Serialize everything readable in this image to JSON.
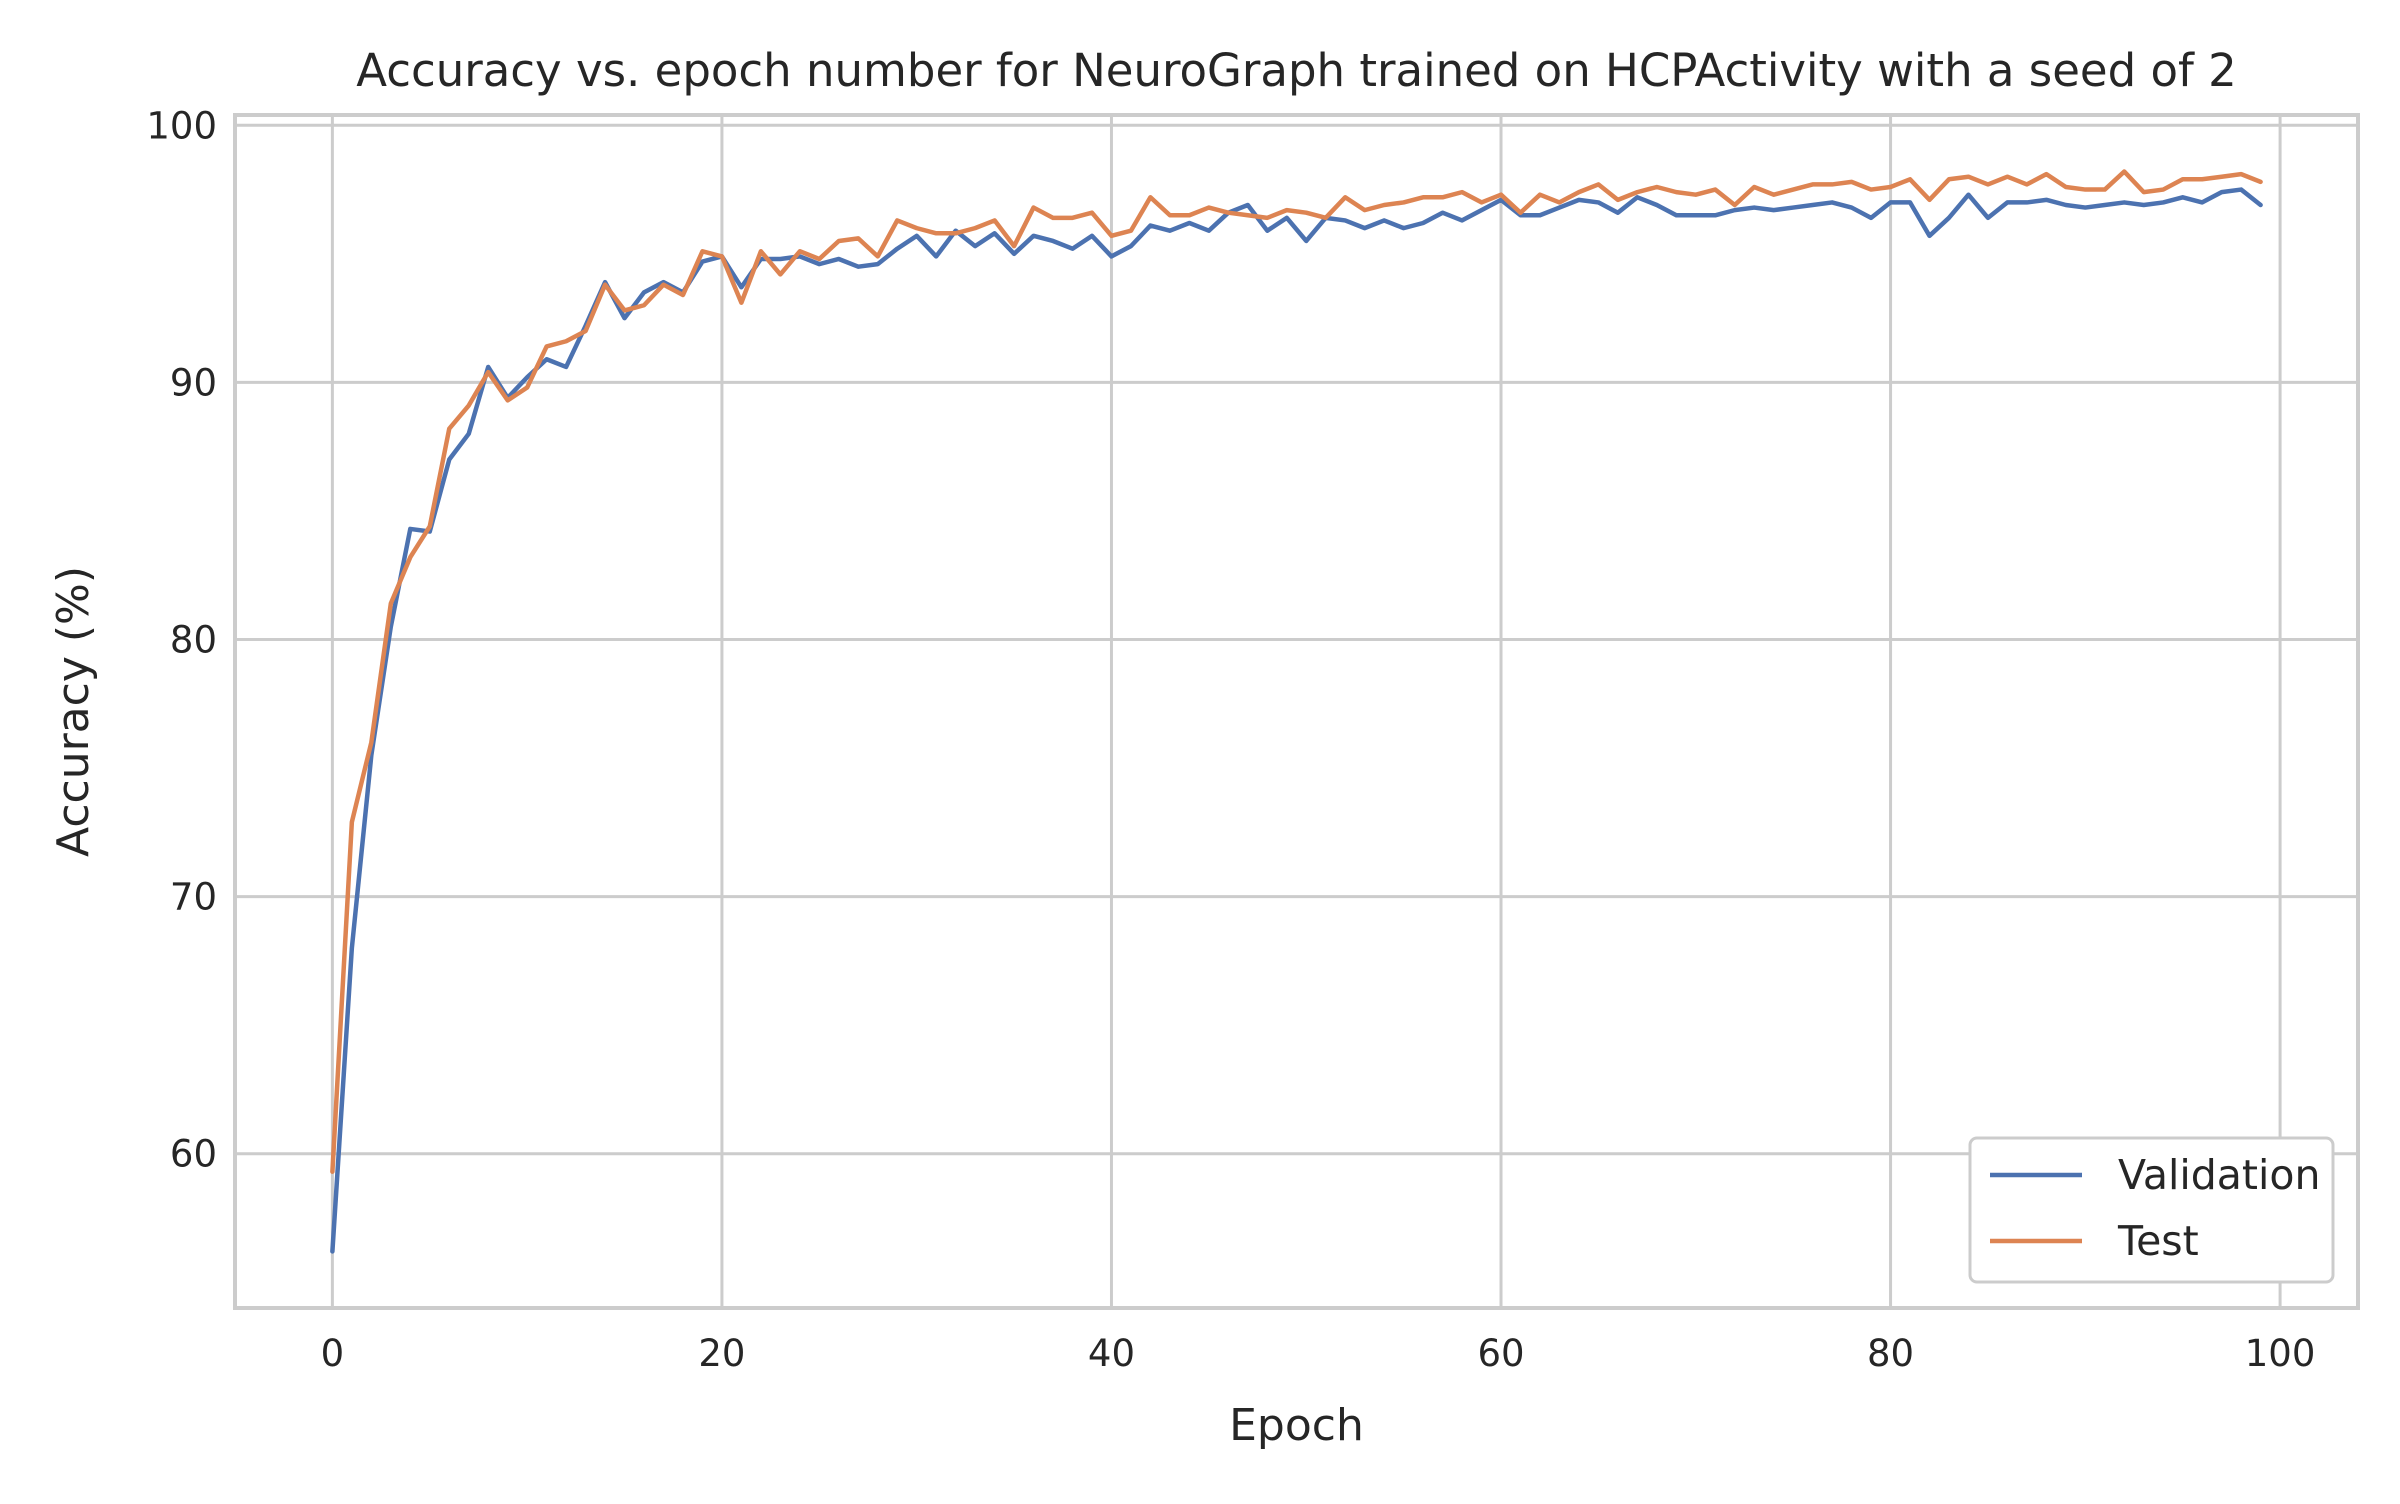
{
  "chart_data": {
    "type": "line",
    "title": "Accuracy vs. epoch number for NeuroGraph trained on HCPActivity with a seed of 2",
    "xlabel": "Epoch",
    "ylabel": "Accuracy (%)",
    "xlim": [
      -5,
      104
    ],
    "ylim": [
      54,
      100.4
    ],
    "x_ticks": [
      0,
      20,
      40,
      60,
      80,
      100
    ],
    "y_ticks": [
      60,
      70,
      80,
      90,
      100
    ],
    "grid": true,
    "legend_position": "lower-right",
    "series": [
      {
        "name": "Validation",
        "color": "#4c72b0",
        "values": [
          56.2,
          68.0,
          75.5,
          80.5,
          84.3,
          84.2,
          87.0,
          88.0,
          90.6,
          89.4,
          90.2,
          90.9,
          90.6,
          92.2,
          93.9,
          92.5,
          93.5,
          93.9,
          93.5,
          94.7,
          94.9,
          93.7,
          94.8,
          94.8,
          94.9,
          94.6,
          94.8,
          94.5,
          94.6,
          95.2,
          95.7,
          94.9,
          95.9,
          95.3,
          95.8,
          95.0,
          95.7,
          95.5,
          95.2,
          95.7,
          94.9,
          95.3,
          96.1,
          95.9,
          96.2,
          95.9,
          96.6,
          96.9,
          95.9,
          96.4,
          95.5,
          96.4,
          96.3,
          96.0,
          96.3,
          96.0,
          96.2,
          96.6,
          96.3,
          96.7,
          97.1,
          96.5,
          96.5,
          96.8,
          97.1,
          97.0,
          96.6,
          97.2,
          96.9,
          96.5,
          96.5,
          96.5,
          96.7,
          96.8,
          96.7,
          96.8,
          96.9,
          97.0,
          96.8,
          96.4,
          97.0,
          97.0,
          95.7,
          96.4,
          97.3,
          96.4,
          97.0,
          97.0,
          97.1,
          96.9,
          96.8,
          96.9,
          97.0,
          96.9,
          97.0,
          97.2,
          97.0,
          97.4,
          97.5,
          96.9
        ]
      },
      {
        "name": "Test",
        "color": "#dd8452",
        "values": [
          59.3,
          72.9,
          76.0,
          81.4,
          83.2,
          84.4,
          88.2,
          89.1,
          90.4,
          89.3,
          89.8,
          91.4,
          91.6,
          92.0,
          93.8,
          92.8,
          93.0,
          93.8,
          93.4,
          95.1,
          94.9,
          93.1,
          95.1,
          94.2,
          95.1,
          94.8,
          95.5,
          95.6,
          94.9,
          96.3,
          96.0,
          95.8,
          95.8,
          96.0,
          96.3,
          95.3,
          96.8,
          96.4,
          96.4,
          96.6,
          95.7,
          95.9,
          97.2,
          96.5,
          96.5,
          96.8,
          96.6,
          96.5,
          96.4,
          96.7,
          96.6,
          96.4,
          97.2,
          96.7,
          96.9,
          97.0,
          97.2,
          97.2,
          97.4,
          97.0,
          97.3,
          96.6,
          97.3,
          97.0,
          97.4,
          97.7,
          97.1,
          97.4,
          97.6,
          97.4,
          97.3,
          97.5,
          96.9,
          97.6,
          97.3,
          97.5,
          97.7,
          97.7,
          97.8,
          97.5,
          97.6,
          97.9,
          97.1,
          97.9,
          98.0,
          97.7,
          98.0,
          97.7,
          98.1,
          97.6,
          97.5,
          97.5,
          98.2,
          97.4,
          97.5,
          97.9,
          97.9,
          98.0,
          98.1,
          97.8
        ]
      }
    ]
  }
}
